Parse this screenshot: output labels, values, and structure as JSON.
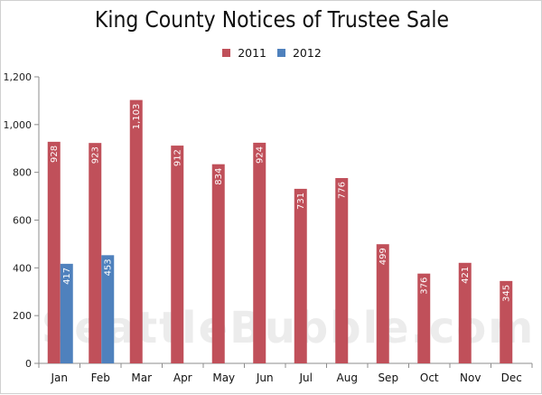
{
  "chart_data": {
    "type": "bar",
    "title": "King County Notices of Trustee Sale",
    "categories": [
      "Jan",
      "Feb",
      "Mar",
      "Apr",
      "May",
      "Jun",
      "Jul",
      "Aug",
      "Sep",
      "Oct",
      "Nov",
      "Dec"
    ],
    "series": [
      {
        "name": "2011",
        "color": "#c0505a",
        "values": [
          928,
          923,
          1103,
          912,
          834,
          924,
          731,
          776,
          499,
          376,
          421,
          345
        ]
      },
      {
        "name": "2012",
        "color": "#4f81bd",
        "values": [
          417,
          453,
          null,
          null,
          null,
          null,
          null,
          null,
          null,
          null,
          null,
          null
        ]
      }
    ],
    "ylim": [
      0,
      1200
    ],
    "yticks": [
      0,
      200,
      400,
      600,
      800,
      1000,
      1200
    ],
    "ytick_labels": [
      "0",
      "200",
      "400",
      "600",
      "800",
      "1,000",
      "1,200"
    ],
    "xlabel": "",
    "ylabel": "",
    "grid": false,
    "legend_position": "top-center",
    "data_labels": true,
    "watermark": "SeattleBubble.com"
  }
}
